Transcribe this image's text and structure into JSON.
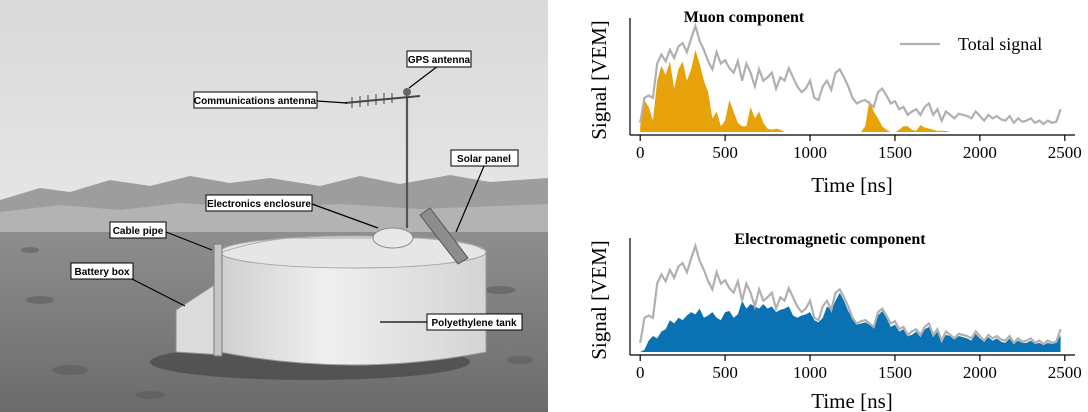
{
  "photo": {
    "labels": {
      "gps": "GPS antenna",
      "comms": "Communications antenna",
      "solar": "Solar panel",
      "electronics": "Electronics enclosure",
      "cable": "Cable pipe",
      "battery": "Battery box",
      "tank": "Polyethylene tank"
    }
  },
  "chart_data": [
    {
      "type": "area",
      "title": "Muon component",
      "xlabel": "Time [ns]",
      "ylabel": "Signal [VEM]",
      "xlim": [
        -60,
        2560
      ],
      "ylim": [
        0,
        1.0
      ],
      "xticks": [
        0,
        500,
        1000,
        1500,
        2000,
        2500
      ],
      "legend": {
        "position": "top-right",
        "label": "Total signal"
      },
      "series": [
        {
          "name": "Total signal",
          "kind": "line",
          "color": "#b0b0b0",
          "x": [
            0,
            25,
            50,
            75,
            100,
            125,
            150,
            175,
            200,
            225,
            250,
            275,
            300,
            325,
            350,
            375,
            400,
            425,
            450,
            475,
            500,
            525,
            550,
            575,
            600,
            625,
            650,
            675,
            700,
            725,
            750,
            775,
            800,
            825,
            850,
            875,
            900,
            925,
            950,
            975,
            1000,
            1025,
            1050,
            1075,
            1100,
            1125,
            1150,
            1175,
            1200,
            1225,
            1250,
            1275,
            1300,
            1325,
            1350,
            1375,
            1400,
            1425,
            1450,
            1475,
            1500,
            1525,
            1550,
            1575,
            1600,
            1625,
            1650,
            1675,
            1700,
            1725,
            1750,
            1775,
            1800,
            1825,
            1850,
            1875,
            1900,
            1925,
            1950,
            1975,
            2000,
            2025,
            2050,
            2075,
            2100,
            2125,
            2150,
            2175,
            2200,
            2225,
            2250,
            2275,
            2300,
            2325,
            2350,
            2375,
            2400,
            2425,
            2450,
            2475
          ],
          "values": [
            0.08,
            0.3,
            0.32,
            0.3,
            0.6,
            0.68,
            0.62,
            0.72,
            0.65,
            0.75,
            0.78,
            0.7,
            0.82,
            0.93,
            0.8,
            0.72,
            0.62,
            0.55,
            0.7,
            0.6,
            0.63,
            0.56,
            0.52,
            0.62,
            0.45,
            0.6,
            0.52,
            0.4,
            0.55,
            0.45,
            0.48,
            0.52,
            0.38,
            0.48,
            0.45,
            0.56,
            0.48,
            0.4,
            0.35,
            0.38,
            0.45,
            0.3,
            0.28,
            0.4,
            0.45,
            0.37,
            0.52,
            0.55,
            0.48,
            0.4,
            0.3,
            0.25,
            0.27,
            0.28,
            0.25,
            0.22,
            0.35,
            0.38,
            0.32,
            0.25,
            0.27,
            0.2,
            0.22,
            0.15,
            0.18,
            0.2,
            0.15,
            0.22,
            0.25,
            0.15,
            0.2,
            0.1,
            0.18,
            0.15,
            0.12,
            0.16,
            0.15,
            0.14,
            0.12,
            0.18,
            0.14,
            0.1,
            0.15,
            0.12,
            0.14,
            0.11,
            0.1,
            0.14,
            0.08,
            0.12,
            0.09,
            0.1,
            0.12,
            0.08,
            0.1,
            0.07,
            0.1,
            0.08,
            0.09,
            0.2
          ]
        },
        {
          "name": "",
          "kind": "area",
          "color": "#e6a208",
          "x": [
            0,
            25,
            50,
            75,
            100,
            125,
            150,
            175,
            200,
            225,
            250,
            275,
            300,
            325,
            350,
            375,
            400,
            425,
            450,
            475,
            500,
            525,
            550,
            575,
            600,
            625,
            650,
            675,
            700,
            725,
            750,
            775,
            800,
            825,
            850,
            875,
            900,
            925,
            950,
            975,
            1000,
            1025,
            1050,
            1075,
            1100,
            1125,
            1150,
            1175,
            1200,
            1225,
            1250,
            1275,
            1300,
            1325,
            1350,
            1375,
            1400,
            1425,
            1450,
            1475,
            1500,
            1525,
            1550,
            1575,
            1600,
            1625,
            1650,
            1675,
            1700,
            1725,
            1750,
            1775,
            1800,
            1825
          ],
          "values": [
            0.05,
            0.28,
            0.22,
            0.1,
            0.45,
            0.58,
            0.5,
            0.62,
            0.38,
            0.55,
            0.62,
            0.45,
            0.55,
            0.72,
            0.6,
            0.45,
            0.35,
            0.12,
            0.18,
            0.05,
            0.1,
            0.28,
            0.18,
            0.08,
            0.05,
            0.05,
            0.22,
            0.12,
            0.18,
            0.08,
            0.03,
            0.02,
            0.03,
            0.02,
            0.0,
            0.0,
            0.0,
            0.0,
            0.0,
            0.0,
            0.0,
            0.0,
            0.0,
            0.0,
            0.0,
            0.0,
            0.0,
            0.0,
            0.0,
            0.0,
            0.0,
            0.0,
            0.0,
            0.05,
            0.28,
            0.18,
            0.12,
            0.05,
            0.02,
            0.0,
            0.0,
            0.02,
            0.05,
            0.05,
            0.02,
            0.01,
            0.06,
            0.04,
            0.03,
            0.02,
            0.01,
            0.01,
            0.01,
            0.0
          ]
        }
      ]
    },
    {
      "type": "area",
      "title": "Electromagnetic component",
      "xlabel": "Time [ns]",
      "ylabel": "Signal [VEM]",
      "xlim": [
        -60,
        2560
      ],
      "ylim": [
        0,
        1.0
      ],
      "xticks": [
        0,
        500,
        1000,
        1500,
        2000,
        2500
      ],
      "series": [
        {
          "name": "Total signal",
          "kind": "line",
          "color": "#b0b0b0",
          "x": [
            0,
            25,
            50,
            75,
            100,
            125,
            150,
            175,
            200,
            225,
            250,
            275,
            300,
            325,
            350,
            375,
            400,
            425,
            450,
            475,
            500,
            525,
            550,
            575,
            600,
            625,
            650,
            675,
            700,
            725,
            750,
            775,
            800,
            825,
            850,
            875,
            900,
            925,
            950,
            975,
            1000,
            1025,
            1050,
            1075,
            1100,
            1125,
            1150,
            1175,
            1200,
            1225,
            1250,
            1275,
            1300,
            1325,
            1350,
            1375,
            1400,
            1425,
            1450,
            1475,
            1500,
            1525,
            1550,
            1575,
            1600,
            1625,
            1650,
            1675,
            1700,
            1725,
            1750,
            1775,
            1800,
            1825,
            1850,
            1875,
            1900,
            1925,
            1950,
            1975,
            2000,
            2025,
            2050,
            2075,
            2100,
            2125,
            2150,
            2175,
            2200,
            2225,
            2250,
            2275,
            2300,
            2325,
            2350,
            2375,
            2400,
            2425,
            2450,
            2475
          ],
          "values": [
            0.08,
            0.3,
            0.32,
            0.3,
            0.6,
            0.68,
            0.62,
            0.72,
            0.65,
            0.75,
            0.78,
            0.7,
            0.82,
            0.93,
            0.8,
            0.72,
            0.62,
            0.55,
            0.7,
            0.6,
            0.63,
            0.56,
            0.52,
            0.62,
            0.45,
            0.6,
            0.52,
            0.4,
            0.55,
            0.45,
            0.48,
            0.52,
            0.38,
            0.48,
            0.45,
            0.56,
            0.48,
            0.4,
            0.35,
            0.38,
            0.45,
            0.3,
            0.28,
            0.4,
            0.45,
            0.37,
            0.52,
            0.55,
            0.48,
            0.4,
            0.3,
            0.25,
            0.27,
            0.28,
            0.25,
            0.22,
            0.35,
            0.38,
            0.32,
            0.25,
            0.27,
            0.2,
            0.22,
            0.15,
            0.18,
            0.2,
            0.15,
            0.22,
            0.25,
            0.15,
            0.2,
            0.1,
            0.18,
            0.15,
            0.12,
            0.16,
            0.15,
            0.14,
            0.12,
            0.18,
            0.14,
            0.1,
            0.15,
            0.12,
            0.14,
            0.11,
            0.1,
            0.14,
            0.08,
            0.12,
            0.09,
            0.1,
            0.12,
            0.08,
            0.1,
            0.07,
            0.1,
            0.08,
            0.09,
            0.2
          ]
        },
        {
          "name": "",
          "kind": "area",
          "color": "#0a72b2",
          "x": [
            0,
            25,
            50,
            75,
            100,
            125,
            150,
            175,
            200,
            225,
            250,
            275,
            300,
            325,
            350,
            375,
            400,
            425,
            450,
            475,
            500,
            525,
            550,
            575,
            600,
            625,
            650,
            675,
            700,
            725,
            750,
            775,
            800,
            825,
            850,
            875,
            900,
            925,
            950,
            975,
            1000,
            1025,
            1050,
            1075,
            1100,
            1125,
            1150,
            1175,
            1200,
            1225,
            1250,
            1275,
            1300,
            1325,
            1350,
            1375,
            1400,
            1425,
            1450,
            1475,
            1500,
            1525,
            1550,
            1575,
            1600,
            1625,
            1650,
            1675,
            1700,
            1725,
            1750,
            1775,
            1800,
            1825,
            1850,
            1875,
            1900,
            1925,
            1950,
            1975,
            2000,
            2025,
            2050,
            2075,
            2100,
            2125,
            2150,
            2175,
            2200,
            2225,
            2250,
            2275,
            2300,
            2325,
            2350,
            2375,
            2400,
            2425,
            2450,
            2475
          ],
          "values": [
            0.0,
            0.02,
            0.1,
            0.14,
            0.12,
            0.18,
            0.2,
            0.28,
            0.25,
            0.3,
            0.28,
            0.32,
            0.35,
            0.33,
            0.38,
            0.3,
            0.32,
            0.35,
            0.3,
            0.28,
            0.35,
            0.36,
            0.3,
            0.33,
            0.45,
            0.38,
            0.42,
            0.4,
            0.38,
            0.42,
            0.38,
            0.4,
            0.35,
            0.37,
            0.38,
            0.4,
            0.32,
            0.3,
            0.32,
            0.33,
            0.35,
            0.28,
            0.26,
            0.3,
            0.4,
            0.37,
            0.45,
            0.52,
            0.45,
            0.36,
            0.3,
            0.24,
            0.25,
            0.26,
            0.24,
            0.22,
            0.32,
            0.36,
            0.3,
            0.22,
            0.24,
            0.18,
            0.2,
            0.14,
            0.15,
            0.18,
            0.13,
            0.2,
            0.22,
            0.13,
            0.18,
            0.09,
            0.15,
            0.14,
            0.11,
            0.14,
            0.13,
            0.12,
            0.1,
            0.16,
            0.12,
            0.09,
            0.13,
            0.1,
            0.12,
            0.09,
            0.08,
            0.12,
            0.07,
            0.1,
            0.08,
            0.08,
            0.1,
            0.07,
            0.08,
            0.06,
            0.08,
            0.07,
            0.08,
            0.15
          ]
        }
      ]
    }
  ]
}
